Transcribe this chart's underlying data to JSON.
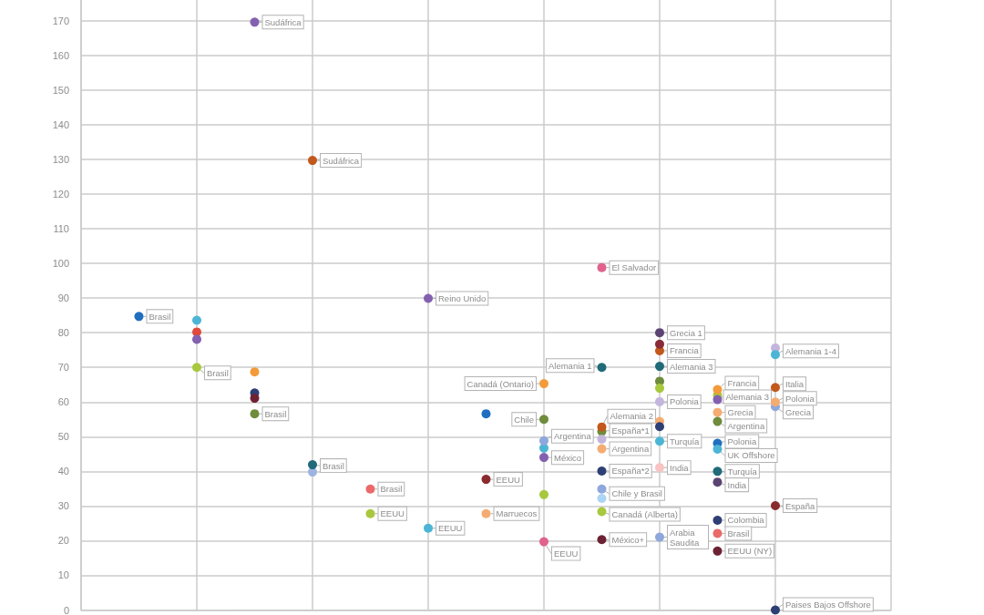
{
  "chart_data": {
    "type": "scatter",
    "marker": "circle",
    "grid": true,
    "tick_labels": "y",
    "categories": [
      null,
      null,
      null,
      null,
      null,
      null,
      null,
      null,
      null,
      null,
      null,
      null,
      null,
      null,
      null
    ],
    "ylim": [
      0,
      176
    ],
    "yticks": [
      0,
      10,
      20,
      30,
      40,
      50,
      60,
      70,
      80,
      90,
      100,
      110,
      120,
      130,
      140,
      150,
      160,
      170
    ],
    "series": [
      {
        "name": "Brasil",
        "color": "#1f6fc0",
        "values": [
          null,
          84.7,
          null,
          null,
          null,
          null,
          null,
          null,
          null,
          null,
          null,
          null,
          null,
          null,
          null
        ]
      },
      {
        "color": "#df4a3d",
        "values": [
          null,
          null,
          80.2,
          null,
          null,
          null,
          null,
          null,
          null,
          null,
          null,
          null,
          null,
          null,
          null
        ]
      },
      {
        "color": "#4cb5d5",
        "values": [
          null,
          null,
          83.6,
          null,
          null,
          null,
          null,
          null,
          null,
          null,
          null,
          null,
          null,
          null,
          null
        ]
      },
      {
        "color": "#8461b0",
        "values": [
          null,
          null,
          78.1,
          null,
          null,
          null,
          null,
          null,
          null,
          null,
          null,
          null,
          null,
          null,
          null
        ]
      },
      {
        "name": "Brasil",
        "color": "#a8c83e",
        "values": [
          null,
          null,
          70,
          null,
          null,
          null,
          null,
          null,
          null,
          null,
          null,
          null,
          null,
          null,
          null
        ]
      },
      {
        "name": "Sudáfrica",
        "color": "#8461b0",
        "values": [
          null,
          null,
          null,
          169.6,
          null,
          null,
          null,
          null,
          null,
          null,
          null,
          null,
          null,
          null,
          null
        ]
      },
      {
        "color": "#f39b3b",
        "values": [
          null,
          null,
          null,
          68.7,
          null,
          null,
          null,
          null,
          null,
          null,
          null,
          null,
          null,
          null,
          null
        ]
      },
      {
        "color": "#2d3f74",
        "values": [
          null,
          null,
          null,
          62.6,
          null,
          null,
          null,
          null,
          null,
          null,
          null,
          null,
          null,
          null,
          null
        ]
      },
      {
        "color": "#6d2234",
        "values": [
          null,
          null,
          null,
          61.1,
          null,
          null,
          null,
          null,
          null,
          null,
          null,
          null,
          null,
          null,
          null
        ]
      },
      {
        "name": "Brasil",
        "color": "#6e8c3c",
        "values": [
          null,
          null,
          null,
          56.6,
          null,
          null,
          null,
          null,
          null,
          null,
          null,
          null,
          null,
          null,
          null
        ]
      },
      {
        "name": "Sudáfrica",
        "color": "#c2581b",
        "values": [
          null,
          null,
          null,
          null,
          129.7,
          null,
          null,
          null,
          null,
          null,
          null,
          null,
          null,
          null,
          null
        ]
      },
      {
        "color": "#9db4e2",
        "values": [
          null,
          null,
          null,
          null,
          39.8,
          null,
          null,
          null,
          null,
          null,
          null,
          null,
          null,
          null,
          null
        ]
      },
      {
        "name": "Brasil",
        "color": "#216b79",
        "values": [
          null,
          null,
          null,
          null,
          41.9,
          null,
          null,
          null,
          null,
          null,
          null,
          null,
          null,
          null,
          null
        ]
      },
      {
        "name": "Brasil",
        "color": "#ea6a6a",
        "values": [
          null,
          null,
          null,
          null,
          null,
          34.9,
          null,
          null,
          null,
          null,
          null,
          null,
          null,
          null,
          null
        ]
      },
      {
        "name": "EEUU",
        "color": "#a8c83e",
        "values": [
          null,
          null,
          null,
          null,
          null,
          27.8,
          null,
          null,
          null,
          null,
          null,
          null,
          null,
          null,
          null
        ]
      },
      {
        "name": "Reino Unido",
        "color": "#8461b0",
        "values": [
          null,
          null,
          null,
          null,
          null,
          null,
          89.9,
          null,
          null,
          null,
          null,
          null,
          null,
          null,
          null
        ]
      },
      {
        "name": "EEUU",
        "color": "#4cb5d5",
        "values": [
          null,
          null,
          null,
          null,
          null,
          null,
          23.6,
          null,
          null,
          null,
          null,
          null,
          null,
          null,
          null
        ]
      },
      {
        "color": "#1f6fc0",
        "values": [
          null,
          null,
          null,
          null,
          null,
          null,
          null,
          56.6,
          null,
          null,
          null,
          null,
          null,
          null,
          null
        ]
      },
      {
        "name": "EEUU",
        "color": "#8a2b2e",
        "values": [
          null,
          null,
          null,
          null,
          null,
          null,
          null,
          37.7,
          null,
          null,
          null,
          null,
          null,
          null,
          null
        ]
      },
      {
        "name": "Marruecos",
        "color": "#f5ac72",
        "values": [
          null,
          null,
          null,
          null,
          null,
          null,
          null,
          27.8,
          null,
          null,
          null,
          null,
          null,
          null,
          null
        ]
      },
      {
        "name": "Canadá (Ontario)",
        "color": "#f39b3b",
        "values": [
          null,
          null,
          null,
          null,
          null,
          null,
          null,
          null,
          65.3,
          null,
          null,
          null,
          null,
          null,
          null
        ]
      },
      {
        "name": "Chile",
        "color": "#6e8c3c",
        "values": [
          null,
          null,
          null,
          null,
          null,
          null,
          null,
          null,
          55,
          null,
          null,
          null,
          null,
          null,
          null
        ]
      },
      {
        "color": "#4cb5d5",
        "values": [
          null,
          null,
          null,
          null,
          null,
          null,
          null,
          null,
          46.7,
          null,
          null,
          null,
          null,
          null,
          null
        ]
      },
      {
        "name": "Argentina",
        "color": "#8ea7dc",
        "values": [
          null,
          null,
          null,
          null,
          null,
          null,
          null,
          null,
          48.8,
          null,
          null,
          null,
          null,
          null,
          null
        ]
      },
      {
        "name": "México",
        "color": "#8461b0",
        "values": [
          null,
          null,
          null,
          null,
          null,
          null,
          null,
          null,
          44,
          null,
          null,
          null,
          null,
          null,
          null
        ]
      },
      {
        "color": "#a8c83e",
        "values": [
          null,
          null,
          null,
          null,
          null,
          null,
          null,
          null,
          33.3,
          null,
          null,
          null,
          null,
          null,
          null
        ]
      },
      {
        "name": "EEUU",
        "color": "#e0628d",
        "values": [
          null,
          null,
          null,
          null,
          null,
          null,
          null,
          null,
          19.7,
          null,
          null,
          null,
          null,
          null,
          null
        ]
      },
      {
        "name": "El Salvador",
        "color": "#e0628d",
        "values": [
          null,
          null,
          null,
          null,
          null,
          null,
          null,
          null,
          null,
          98.8,
          null,
          null,
          null,
          null,
          null
        ]
      },
      {
        "name": "Alemania 1",
        "color": "#216b79",
        "values": [
          null,
          null,
          null,
          null,
          null,
          null,
          null,
          null,
          null,
          70,
          null,
          null,
          null,
          null,
          null
        ]
      },
      {
        "name": "España*1",
        "color": "#6e8c3c",
        "values": [
          null,
          null,
          null,
          null,
          null,
          null,
          null,
          null,
          null,
          51.5,
          null,
          null,
          null,
          null,
          null
        ]
      },
      {
        "name": "Alemania 2",
        "color": "#c2581b",
        "values": [
          null,
          null,
          null,
          null,
          null,
          null,
          null,
          null,
          null,
          52.8,
          null,
          null,
          null,
          null,
          null
        ]
      },
      {
        "color": "#c3b5dc",
        "values": [
          null,
          null,
          null,
          null,
          null,
          null,
          null,
          null,
          null,
          49.3,
          null,
          null,
          null,
          null,
          null
        ]
      },
      {
        "name": "Argentina",
        "color": "#f5ac72",
        "values": [
          null,
          null,
          null,
          null,
          null,
          null,
          null,
          null,
          null,
          46.5,
          null,
          null,
          null,
          null,
          null
        ]
      },
      {
        "name": "España*2",
        "color": "#2d3f74",
        "values": [
          null,
          null,
          null,
          null,
          null,
          null,
          null,
          null,
          null,
          40.1,
          null,
          null,
          null,
          null,
          null
        ]
      },
      {
        "name": "Chile y Brasil",
        "color": "#8ea7dc",
        "values": [
          null,
          null,
          null,
          null,
          null,
          null,
          null,
          null,
          null,
          34.9,
          null,
          null,
          null,
          null,
          null
        ]
      },
      {
        "color": "#abd5f3",
        "values": [
          null,
          null,
          null,
          null,
          null,
          null,
          null,
          null,
          null,
          32.2,
          null,
          null,
          null,
          null,
          null
        ]
      },
      {
        "name": "Canadá (Alberta)",
        "color": "#a8c83e",
        "values": [
          null,
          null,
          null,
          null,
          null,
          null,
          null,
          null,
          null,
          28.4,
          null,
          null,
          null,
          null,
          null
        ]
      },
      {
        "name": "México+",
        "color": "#6d2234",
        "values": [
          null,
          null,
          null,
          null,
          null,
          null,
          null,
          null,
          null,
          20.3,
          null,
          null,
          null,
          null,
          null
        ]
      },
      {
        "name": "Grecia 1",
        "color": "#5b4473",
        "values": [
          null,
          null,
          null,
          null,
          null,
          null,
          null,
          null,
          null,
          null,
          80,
          null,
          null,
          null,
          null
        ]
      },
      {
        "name": "Francia",
        "color": "#c2581b",
        "values": [
          null,
          null,
          null,
          null,
          null,
          null,
          null,
          null,
          null,
          null,
          74.8,
          null,
          null,
          null,
          null
        ]
      },
      {
        "color": "#8a2b38",
        "values": [
          null,
          null,
          null,
          null,
          null,
          null,
          null,
          null,
          null,
          null,
          76.7,
          null,
          null,
          null,
          null
        ]
      },
      {
        "name": "Alemania 3",
        "color": "#216b79",
        "values": [
          null,
          null,
          null,
          null,
          null,
          null,
          null,
          null,
          null,
          null,
          70.3,
          null,
          null,
          null,
          null
        ]
      },
      {
        "color": "#6e8c3c",
        "values": [
          null,
          null,
          null,
          null,
          null,
          null,
          null,
          null,
          null,
          null,
          66,
          null,
          null,
          null,
          null
        ]
      },
      {
        "color": "#a8c83e",
        "values": [
          null,
          null,
          null,
          null,
          null,
          null,
          null,
          null,
          null,
          null,
          64,
          null,
          null,
          null,
          null
        ]
      },
      {
        "name": "Polonia",
        "color": "#c3b5dc",
        "values": [
          null,
          null,
          null,
          null,
          null,
          null,
          null,
          null,
          null,
          null,
          60.1,
          null,
          null,
          null,
          null
        ]
      },
      {
        "color": "#f5ac72",
        "values": [
          null,
          null,
          null,
          null,
          null,
          null,
          null,
          null,
          null,
          null,
          54.4,
          null,
          null,
          null,
          null
        ]
      },
      {
        "color": "#2d3f74",
        "values": [
          null,
          null,
          null,
          null,
          null,
          null,
          null,
          null,
          null,
          null,
          52.9,
          null,
          null,
          null,
          null
        ]
      },
      {
        "name": "Turquía",
        "color": "#4cb5d5",
        "values": [
          null,
          null,
          null,
          null,
          null,
          null,
          null,
          null,
          null,
          null,
          48.7,
          null,
          null,
          null,
          null
        ]
      },
      {
        "name": "India",
        "color": "#f8c3c3",
        "values": [
          null,
          null,
          null,
          null,
          null,
          null,
          null,
          null,
          null,
          null,
          41.1,
          null,
          null,
          null,
          null
        ]
      },
      {
        "name": "Arabia Saudita",
        "color": "#8ea7dc",
        "values": [
          null,
          null,
          null,
          null,
          null,
          null,
          null,
          null,
          null,
          null,
          21,
          null,
          null,
          null,
          null
        ]
      },
      {
        "color": "#a8c83e",
        "values": [
          null,
          null,
          null,
          null,
          null,
          null,
          null,
          null,
          null,
          null,
          null,
          62,
          null,
          null,
          null
        ]
      },
      {
        "name": "Francia",
        "color": "#f39b3b",
        "values": [
          null,
          null,
          null,
          null,
          null,
          null,
          null,
          null,
          null,
          null,
          null,
          63.6,
          null,
          null,
          null
        ]
      },
      {
        "name": "Alemania 3",
        "color": "#8461b0",
        "values": [
          null,
          null,
          null,
          null,
          null,
          null,
          null,
          null,
          null,
          null,
          null,
          60.7,
          null,
          null,
          null
        ]
      },
      {
        "name": "Grecia",
        "color": "#f5ac72",
        "values": [
          null,
          null,
          null,
          null,
          null,
          null,
          null,
          null,
          null,
          null,
          null,
          57,
          null,
          null,
          null
        ]
      },
      {
        "name": "Argentina",
        "color": "#6e8c3c",
        "values": [
          null,
          null,
          null,
          null,
          null,
          null,
          null,
          null,
          null,
          null,
          null,
          54.4,
          null,
          null,
          null
        ]
      },
      {
        "name": "Polonia",
        "color": "#1f6fc0",
        "values": [
          null,
          null,
          null,
          null,
          null,
          null,
          null,
          null,
          null,
          null,
          null,
          48.1,
          null,
          null,
          null
        ]
      },
      {
        "name": "UK Offshore",
        "color": "#4cb5d5",
        "values": [
          null,
          null,
          null,
          null,
          null,
          null,
          null,
          null,
          null,
          null,
          null,
          46.4,
          null,
          null,
          null
        ]
      },
      {
        "name": "Turquía",
        "color": "#216b79",
        "values": [
          null,
          null,
          null,
          null,
          null,
          null,
          null,
          null,
          null,
          null,
          null,
          40,
          null,
          null,
          null
        ]
      },
      {
        "name": "India",
        "color": "#5b4473",
        "values": [
          null,
          null,
          null,
          null,
          null,
          null,
          null,
          null,
          null,
          null,
          null,
          36.9,
          null,
          null,
          null
        ]
      },
      {
        "name": "Colombia",
        "color": "#2d3f74",
        "values": [
          null,
          null,
          null,
          null,
          null,
          null,
          null,
          null,
          null,
          null,
          null,
          25.9,
          null,
          null,
          null
        ]
      },
      {
        "name": "Brasil",
        "color": "#ea6a6a",
        "values": [
          null,
          null,
          null,
          null,
          null,
          null,
          null,
          null,
          null,
          null,
          null,
          22.1,
          null,
          null,
          null
        ]
      },
      {
        "name": "EEUU (NY)",
        "color": "#6d2234",
        "values": [
          null,
          null,
          null,
          null,
          null,
          null,
          null,
          null,
          null,
          null,
          null,
          17,
          null,
          null,
          null
        ]
      },
      {
        "color": "#c3b5dc",
        "values": [
          null,
          null,
          null,
          null,
          null,
          null,
          null,
          null,
          null,
          null,
          null,
          null,
          75.6,
          null,
          null
        ]
      },
      {
        "name": "Alemania 1-4",
        "color": "#4cb5d5",
        "values": [
          null,
          null,
          null,
          null,
          null,
          null,
          null,
          null,
          null,
          null,
          null,
          null,
          73.7,
          null,
          null
        ]
      },
      {
        "name": "Italia",
        "color": "#c2581b",
        "values": [
          null,
          null,
          null,
          null,
          null,
          null,
          null,
          null,
          null,
          null,
          null,
          null,
          64.2,
          null,
          null
        ]
      },
      {
        "name": "Grecia",
        "color": "#8ea7dc",
        "values": [
          null,
          null,
          null,
          null,
          null,
          null,
          null,
          null,
          null,
          null,
          null,
          null,
          58.7,
          null,
          null
        ]
      },
      {
        "name": "Polonia",
        "color": "#f5ac72",
        "values": [
          null,
          null,
          null,
          null,
          null,
          null,
          null,
          null,
          null,
          null,
          null,
          null,
          60,
          null,
          null
        ]
      },
      {
        "name": "España",
        "color": "#8a2b2e",
        "values": [
          null,
          null,
          null,
          null,
          null,
          null,
          null,
          null,
          null,
          null,
          null,
          null,
          30.1,
          null,
          null
        ]
      },
      {
        "name": "Paises Bajos Offshore",
        "color": "#2d3f74",
        "values": [
          null,
          null,
          null,
          null,
          null,
          null,
          null,
          null,
          null,
          null,
          null,
          null,
          0,
          null,
          null
        ]
      }
    ]
  }
}
